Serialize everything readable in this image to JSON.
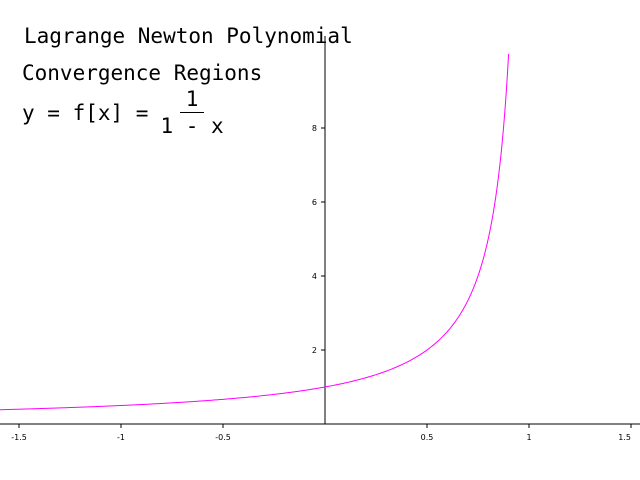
{
  "title": {
    "line1": "Lagrange Newton Polynomial",
    "line2": "Convergence Regions",
    "formula_lhs": "y = f[x] =",
    "formula_numerator": "1",
    "formula_denominator": "1 - x"
  },
  "chart_data": {
    "type": "line",
    "function": "1/(1-x)",
    "xlim": [
      -1.6,
      1.5
    ],
    "ylim": [
      0,
      10.3
    ],
    "x_ticks": [
      {
        "value": -1.5,
        "label": "-1.5"
      },
      {
        "value": -1,
        "label": "-1"
      },
      {
        "value": -0.5,
        "label": "-0.5"
      },
      {
        "value": 0.5,
        "label": "0.5"
      },
      {
        "value": 1,
        "label": "1"
      },
      {
        "value": 1.5,
        "label": "1.5"
      }
    ],
    "y_ticks": [
      {
        "value": 2,
        "label": "2"
      },
      {
        "value": 4,
        "label": "4"
      },
      {
        "value": 6,
        "label": "6"
      },
      {
        "value": 8,
        "label": "8"
      }
    ],
    "series": [
      {
        "color": "#ff00ff",
        "x": [
          -1.6,
          -1.4,
          -1.2,
          -1.0,
          -0.8,
          -0.6,
          -0.4,
          -0.2,
          0.0,
          0.2,
          0.4,
          0.5,
          0.6,
          0.7,
          0.75,
          0.8,
          0.85,
          0.88,
          0.9
        ],
        "y": [
          0.385,
          0.417,
          0.455,
          0.5,
          0.556,
          0.625,
          0.714,
          0.833,
          1.0,
          1.25,
          1.667,
          2.0,
          2.5,
          3.333,
          4.0,
          5.0,
          6.667,
          8.333,
          10.0
        ]
      }
    ],
    "grid": false,
    "legend": "none"
  }
}
